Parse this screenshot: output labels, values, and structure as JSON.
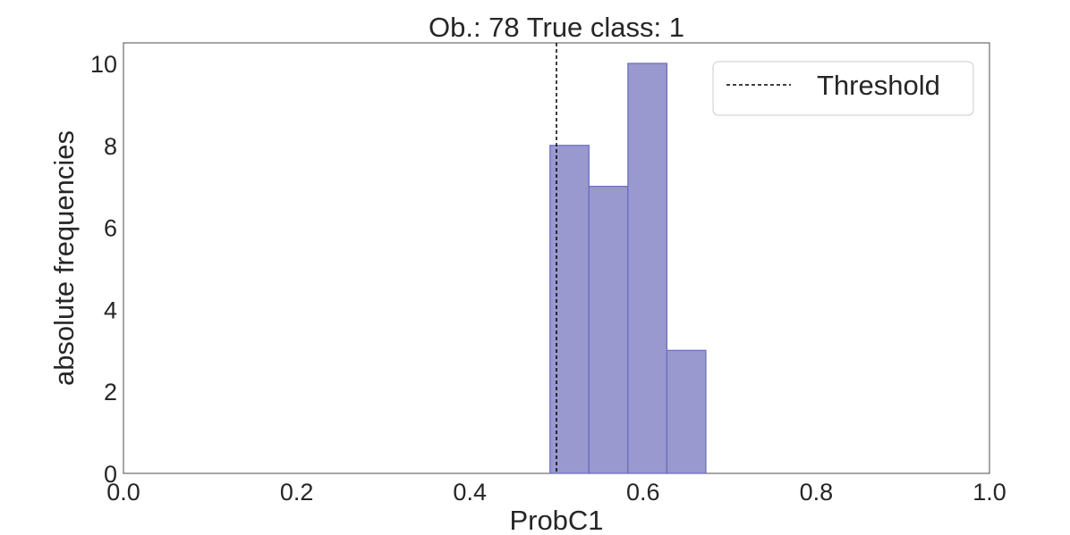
{
  "chart_data": {
    "type": "bar",
    "title": "Ob.: 78 True class: 1",
    "xlabel": "ProbC1",
    "ylabel": "absolute frequencies",
    "xlim": [
      0.0,
      1.0
    ],
    "ylim": [
      0,
      10.5
    ],
    "xticks": [
      "0.0",
      "0.2",
      "0.4",
      "0.6",
      "0.8",
      "1.0"
    ],
    "yticks": [
      "0",
      "2",
      "4",
      "6",
      "8",
      "10"
    ],
    "grid": false,
    "bins": [
      {
        "start": 0.4925,
        "end": 0.5375,
        "count": 8
      },
      {
        "start": 0.5375,
        "end": 0.5825,
        "count": 7
      },
      {
        "start": 0.5825,
        "end": 0.6275,
        "count": 10
      },
      {
        "start": 0.6275,
        "end": 0.6725,
        "count": 3
      }
    ],
    "bar_color": "#9999d0",
    "bar_edge_color": "#6a6ac0",
    "threshold": {
      "x": 0.5,
      "label": "Threshold",
      "style": "dashed",
      "color": "#000000"
    },
    "legend": {
      "placement": "top-right",
      "entries": [
        "Threshold"
      ]
    }
  }
}
